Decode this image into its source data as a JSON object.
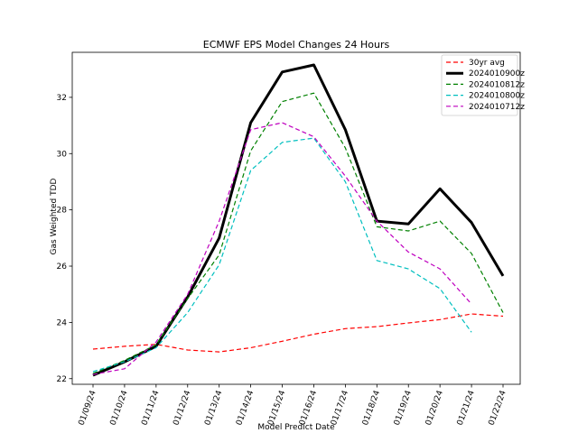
{
  "chart_data": {
    "type": "line",
    "title": "ECMWF EPS Model Changes 24 Hours",
    "xlabel": "Model Predict Date",
    "ylabel": "Gas Weighted TDD",
    "categories": [
      "01/09/24",
      "01/10/24",
      "01/11/24",
      "01/12/24",
      "01/13/24",
      "01/14/24",
      "01/15/24",
      "01/16/24",
      "01/17/24",
      "01/18/24",
      "01/19/24",
      "01/20/24",
      "01/21/24",
      "01/22/24"
    ],
    "ylim": [
      21.8,
      33.6
    ],
    "yticks": [
      22,
      24,
      26,
      28,
      30,
      32
    ],
    "grid": false,
    "legend_position": "top-right",
    "series": [
      {
        "name": "30yr avg",
        "color": "#ff0000",
        "style": "dashed",
        "width": 1.2,
        "values": [
          23.05,
          23.15,
          23.22,
          23.02,
          22.95,
          23.1,
          23.33,
          23.58,
          23.78,
          23.85,
          23.98,
          24.1,
          24.3,
          24.22
        ]
      },
      {
        "name": "2024010900z",
        "color": "#000000",
        "style": "solid",
        "width": 3,
        "values": [
          22.12,
          22.6,
          23.15,
          24.9,
          27.0,
          31.1,
          32.9,
          33.15,
          30.85,
          27.6,
          27.5,
          28.75,
          27.55,
          25.65
        ]
      },
      {
        "name": "2024010812z",
        "color": "#008000",
        "style": "dashed",
        "width": 1.2,
        "values": [
          22.18,
          22.65,
          23.2,
          24.85,
          26.4,
          30.1,
          31.85,
          32.15,
          30.2,
          27.4,
          27.25,
          27.6,
          26.45,
          24.35
        ]
      },
      {
        "name": "2024010800z",
        "color": "#00bfbf",
        "style": "dashed",
        "width": 1.2,
        "values": [
          22.25,
          22.6,
          23.1,
          24.35,
          26.05,
          29.4,
          30.4,
          30.55,
          29.0,
          26.2,
          25.9,
          25.2,
          23.65,
          null
        ]
      },
      {
        "name": "2024010712z",
        "color": "#bf00bf",
        "style": "dashed",
        "width": 1.2,
        "values": [
          22.15,
          22.35,
          23.3,
          25.0,
          27.6,
          30.85,
          31.1,
          30.6,
          29.2,
          27.6,
          26.5,
          25.9,
          24.65,
          null
        ]
      }
    ]
  }
}
